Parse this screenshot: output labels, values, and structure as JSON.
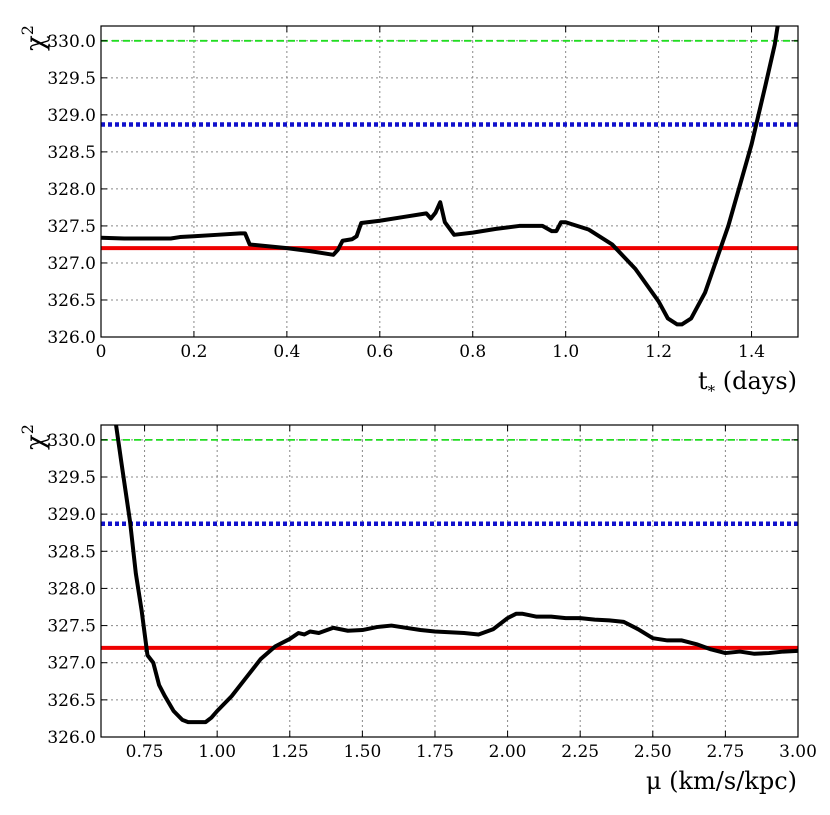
{
  "chart_data": [
    {
      "type": "line",
      "xlabel": "t* (days)",
      "xlabel_main": "t",
      "xlabel_sub": "*",
      "xlabel_unit": " (days)",
      "ylabel": "χ²",
      "ylabel_main": "χ",
      "ylabel_sup": "2",
      "xlim": [
        0,
        1.5
      ],
      "ylim": [
        326.0,
        330.2
      ],
      "xticks": [
        0,
        0.2,
        0.4,
        0.6,
        0.8,
        1.0,
        1.2,
        1.4
      ],
      "xtick_labels": [
        "0",
        "0.2",
        "0.4",
        "0.6",
        "0.8",
        "1.0",
        "1.2",
        "1.4"
      ],
      "yticks": [
        326.0,
        326.5,
        327.0,
        327.5,
        328.0,
        328.5,
        329.0,
        329.5,
        330.0
      ],
      "ytick_labels": [
        "326.0",
        "326.5",
        "327.0",
        "327.5",
        "328.0",
        "328.5",
        "329.0",
        "329.5",
        "330.0"
      ],
      "grid": true,
      "hlines": [
        {
          "y": 330.0,
          "color": "#22dd22",
          "style": "dashed"
        },
        {
          "y": 328.87,
          "color": "#1111cc",
          "style": "dotted"
        },
        {
          "y": 327.2,
          "color": "#ee0000",
          "style": "solid"
        }
      ],
      "series": [
        {
          "color": "#000000",
          "x": [
            0,
            0.05,
            0.1,
            0.15,
            0.17,
            0.2,
            0.25,
            0.3,
            0.31,
            0.32,
            0.4,
            0.45,
            0.5,
            0.51,
            0.52,
            0.54,
            0.55,
            0.56,
            0.6,
            0.65,
            0.7,
            0.71,
            0.72,
            0.73,
            0.74,
            0.76,
            0.8,
            0.85,
            0.9,
            0.95,
            0.97,
            0.98,
            0.99,
            1.0,
            1.05,
            1.1,
            1.15,
            1.2,
            1.22,
            1.24,
            1.25,
            1.27,
            1.3,
            1.35,
            1.4,
            1.43,
            1.45,
            1.46
          ],
          "y": [
            327.34,
            327.33,
            327.33,
            327.33,
            327.35,
            327.36,
            327.38,
            327.4,
            327.4,
            327.25,
            327.2,
            327.16,
            327.11,
            327.18,
            327.3,
            327.32,
            327.36,
            327.54,
            327.57,
            327.62,
            327.67,
            327.6,
            327.68,
            327.82,
            327.55,
            327.38,
            327.41,
            327.46,
            327.5,
            327.5,
            327.43,
            327.43,
            327.55,
            327.55,
            327.45,
            327.25,
            326.92,
            326.48,
            326.25,
            326.17,
            326.17,
            326.25,
            326.6,
            327.5,
            328.6,
            329.4,
            329.95,
            330.35
          ]
        }
      ]
    },
    {
      "type": "line",
      "xlabel": "μ (km/s/kpc)",
      "ylabel": "χ²",
      "ylabel_main": "χ",
      "ylabel_sup": "2",
      "xlim": [
        0.6,
        3.0
      ],
      "ylim": [
        326.0,
        330.2
      ],
      "xticks": [
        0.75,
        1.0,
        1.25,
        1.5,
        1.75,
        2.0,
        2.25,
        2.5,
        2.75,
        3.0
      ],
      "xtick_labels": [
        "0.75",
        "1.00",
        "1.25",
        "1.50",
        "1.75",
        "2.00",
        "2.25",
        "2.50",
        "2.75",
        "3.00"
      ],
      "yticks": [
        326.0,
        326.5,
        327.0,
        327.5,
        328.0,
        328.5,
        329.0,
        329.5,
        330.0
      ],
      "ytick_labels": [
        "326.0",
        "326.5",
        "327.0",
        "327.5",
        "328.0",
        "328.5",
        "329.0",
        "329.5",
        "330.0"
      ],
      "grid": true,
      "hlines": [
        {
          "y": 330.0,
          "color": "#22dd22",
          "style": "dashed"
        },
        {
          "y": 328.87,
          "color": "#1111cc",
          "style": "dotted"
        },
        {
          "y": 327.2,
          "color": "#ee0000",
          "style": "solid"
        }
      ],
      "series": [
        {
          "color": "#000000",
          "x": [
            0.65,
            0.67,
            0.7,
            0.72,
            0.74,
            0.76,
            0.78,
            0.8,
            0.82,
            0.85,
            0.88,
            0.9,
            0.93,
            0.96,
            0.98,
            1.0,
            1.05,
            1.1,
            1.15,
            1.2,
            1.25,
            1.28,
            1.3,
            1.32,
            1.35,
            1.4,
            1.45,
            1.5,
            1.55,
            1.6,
            1.65,
            1.7,
            1.75,
            1.8,
            1.85,
            1.9,
            1.95,
            2.0,
            2.03,
            2.05,
            2.1,
            2.15,
            2.2,
            2.25,
            2.3,
            2.35,
            2.4,
            2.45,
            2.5,
            2.55,
            2.6,
            2.65,
            2.7,
            2.75,
            2.8,
            2.85,
            2.9,
            2.95,
            3.0
          ],
          "y": [
            330.25,
            329.7,
            328.9,
            328.2,
            327.7,
            327.1,
            327.0,
            326.7,
            326.55,
            326.35,
            326.23,
            326.2,
            326.2,
            326.2,
            326.26,
            326.35,
            326.55,
            326.8,
            327.05,
            327.22,
            327.32,
            327.4,
            327.38,
            327.42,
            327.4,
            327.47,
            327.43,
            327.44,
            327.48,
            327.5,
            327.47,
            327.44,
            327.42,
            327.41,
            327.4,
            327.38,
            327.45,
            327.6,
            327.66,
            327.66,
            327.62,
            327.62,
            327.6,
            327.6,
            327.58,
            327.57,
            327.55,
            327.45,
            327.33,
            327.3,
            327.3,
            327.25,
            327.18,
            327.13,
            327.15,
            327.12,
            327.13,
            327.15,
            327.16
          ]
        }
      ]
    }
  ]
}
